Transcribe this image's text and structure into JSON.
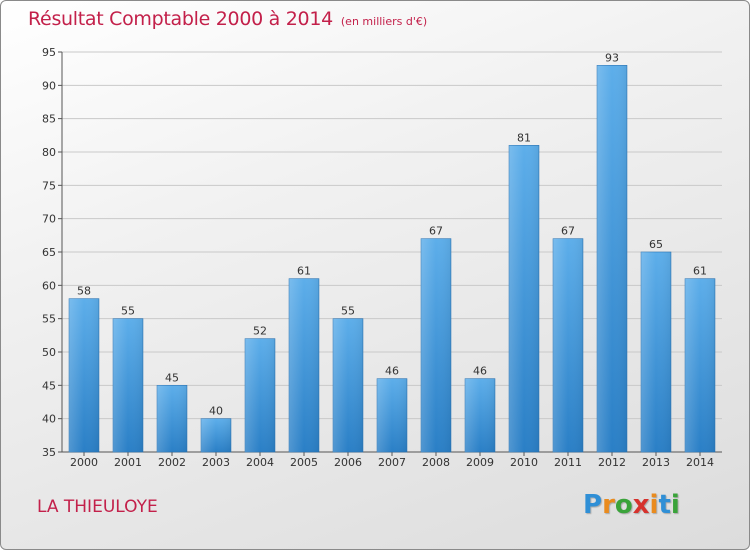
{
  "header": {
    "title": "Résultat Comptable 2000 à 2014",
    "unit": "(en milliers d'€)"
  },
  "footer": {
    "commune": "LA THIEULOYE",
    "brand_letters": [
      "P",
      "r",
      "o",
      "x",
      "i",
      "t",
      "i"
    ],
    "brand_colors": [
      "#2f8fd6",
      "#e98b1e",
      "#3aa33a",
      "#d6322d",
      "#e98b1e",
      "#2f8fd6",
      "#3aa33a"
    ]
  },
  "colors": {
    "title": "#c3204a",
    "bar_light": "#5daeea",
    "bar_dark": "#2a7fc6",
    "grid": "#c9c9c9"
  },
  "chart_data": {
    "type": "bar",
    "title": "Résultat Comptable 2000 à 2014",
    "subtitle": "(en milliers d'€)",
    "xlabel": "",
    "ylabel": "",
    "categories": [
      "2000",
      "2001",
      "2002",
      "2003",
      "2004",
      "2005",
      "2006",
      "2007",
      "2008",
      "2009",
      "2010",
      "2011",
      "2012",
      "2013",
      "2014"
    ],
    "values": [
      58,
      55,
      45,
      40,
      52,
      61,
      55,
      46,
      67,
      46,
      81,
      67,
      93,
      65,
      61
    ],
    "ylim": [
      35,
      95
    ],
    "yticks": [
      35,
      40,
      45,
      50,
      55,
      60,
      65,
      70,
      75,
      80,
      85,
      90,
      95
    ],
    "grid": true,
    "data_labels": true
  }
}
